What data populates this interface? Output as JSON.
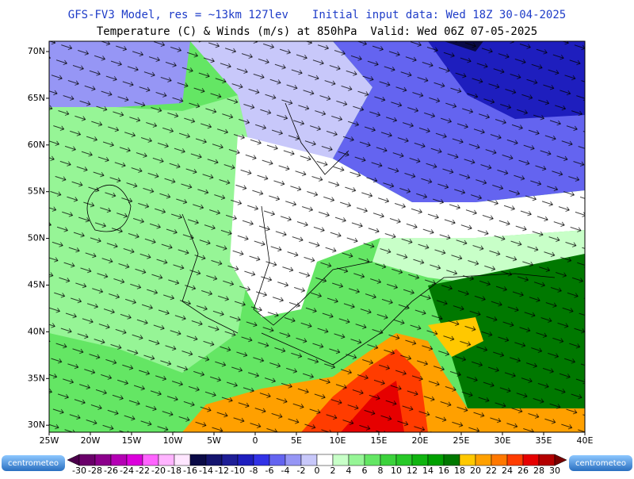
{
  "header": {
    "model": "GFS-FV3 Model, res = ~13km 127lev",
    "init": "Initial input data: Wed 18Z 30-04-2025",
    "subtitle": "Temperature (C) & Winds (m/s) at 850hPa  Valid: Wed 06Z 07-05-2025"
  },
  "axes": {
    "lat": [
      "70N",
      "65N",
      "60N",
      "55N",
      "50N",
      "45N",
      "40N",
      "35N",
      "30N"
    ],
    "lon": [
      "25W",
      "20W",
      "15W",
      "10W",
      "5W",
      "0",
      "5E",
      "10E",
      "15E",
      "20E",
      "25E",
      "30E",
      "35E",
      "40E"
    ]
  },
  "colorbar": {
    "labels": [
      "-30",
      "-28",
      "-26",
      "-24",
      "-22",
      "-20",
      "-18",
      "-16",
      "-14",
      "-12",
      "-10",
      "-8",
      "-6",
      "-4",
      "-2",
      "0",
      "2",
      "4",
      "6",
      "8",
      "10",
      "12",
      "14",
      "16",
      "18",
      "20",
      "22",
      "24",
      "26",
      "28",
      "30"
    ],
    "colors": [
      "#4b004b",
      "#6a006a",
      "#8c008c",
      "#b400b4",
      "#dc00dc",
      "#ff64ff",
      "#ffb4ff",
      "#ffe6ff",
      "#0a0a46",
      "#14146e",
      "#1e1e96",
      "#1e1ebe",
      "#3232e6",
      "#6464f0",
      "#9696f5",
      "#c8c8fa",
      "#ffffff",
      "#c8ffc8",
      "#96f596",
      "#64e664",
      "#3cd23c",
      "#28c828",
      "#10b410",
      "#00a000",
      "#007800",
      "#ffc800",
      "#ffa000",
      "#ff7800",
      "#ff3c00",
      "#e60000",
      "#b40000",
      "#780000"
    ]
  },
  "logos": {
    "left": "centrometeo",
    "right": "centrometeo"
  }
}
